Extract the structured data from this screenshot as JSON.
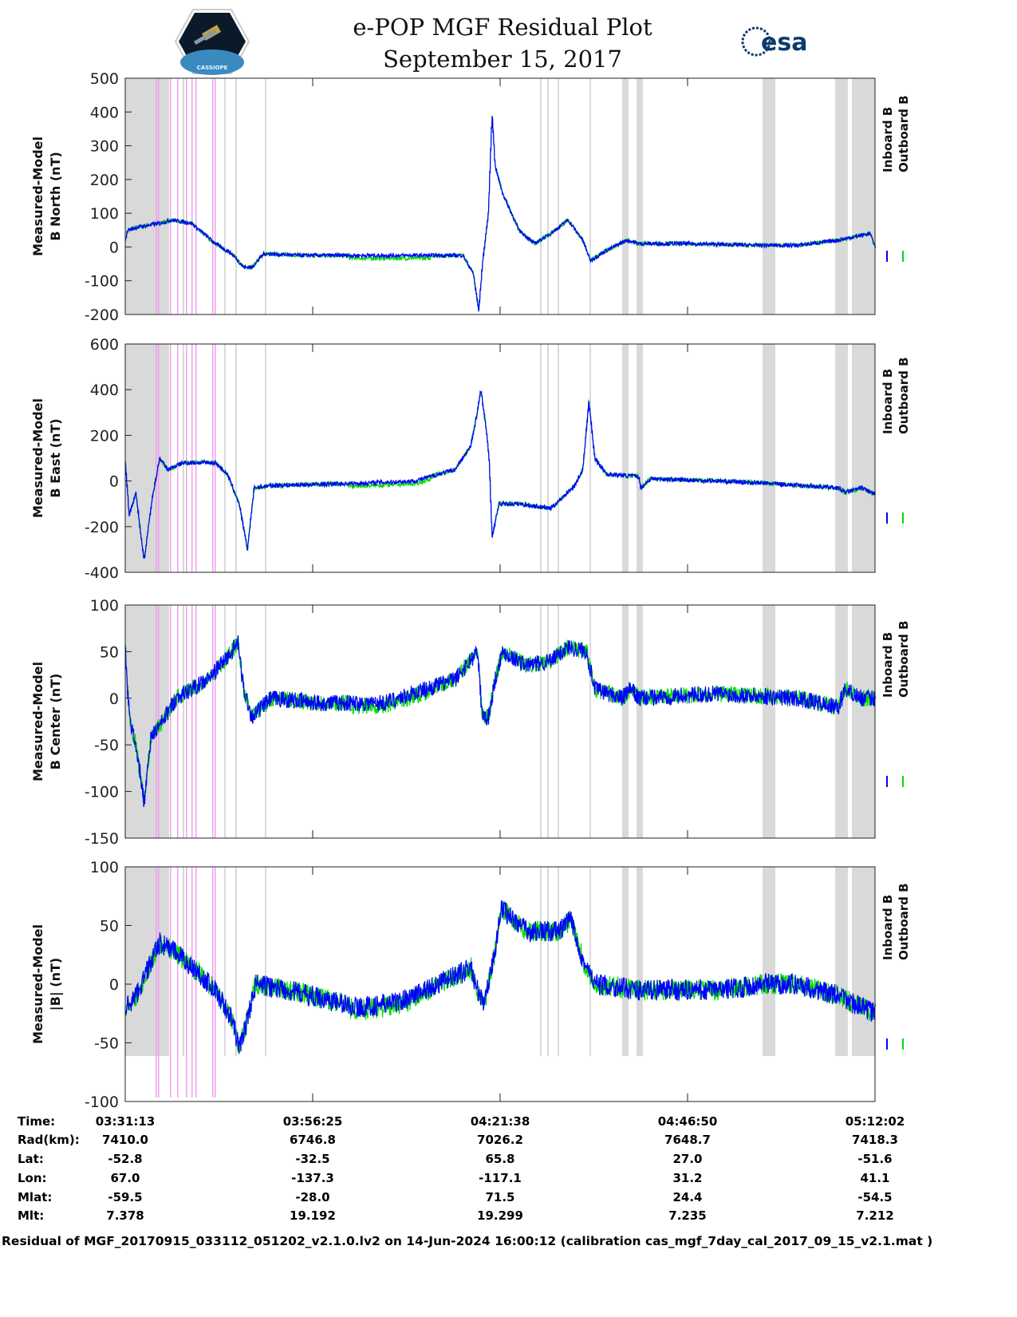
{
  "header": {
    "title_line1": "e-POP MGF Residual Plot",
    "title_line2": "September 15, 2017",
    "left_logo_text": "CASSIOPE",
    "right_logo_text": "esa"
  },
  "colors": {
    "inboard": "#0000ff",
    "outboard": "#00dd00",
    "band": "#d9d9d9",
    "pink": "#f0a0f0"
  },
  "chart_data": [
    {
      "type": "line",
      "ylabel": [
        "Measured-Model",
        "B North (nT)"
      ],
      "ylim": [
        -200,
        500
      ],
      "yticks": [
        500,
        400,
        300,
        200,
        100,
        0,
        -100,
        -200
      ],
      "noise": 6,
      "x": [
        0,
        0.3,
        1.9,
        4.6,
        6.2,
        8.9,
        10.5,
        12.1,
        14.3,
        15.9,
        17.0,
        18.6,
        23.9,
        31.4,
        38.9,
        45.4,
        46.8,
        47.5,
        48.0,
        48.8,
        49.3,
        49.7,
        50.7,
        52.9,
        55.0,
        57.2,
        59.5,
        61.5,
        62.5,
        64.7,
        67.4,
        69.0,
        75.4,
        85.0,
        90.4,
        95.8,
        100.1,
        100.8
      ],
      "y": [
        20,
        50,
        60,
        70,
        80,
        70,
        40,
        10,
        -20,
        -60,
        -60,
        -20,
        -25,
        -25,
        -25,
        -25,
        -80,
        -190,
        -50,
        100,
        400,
        240,
        160,
        50,
        10,
        40,
        80,
        20,
        -40,
        -10,
        20,
        10,
        10,
        5,
        5,
        20,
        40,
        0
      ],
      "legend": [
        "Inboard B",
        "Outboard B"
      ]
    },
    {
      "type": "line",
      "ylabel": [
        "Measured-Model",
        "B East (nT)"
      ],
      "ylim": [
        -400,
        600
      ],
      "yticks": [
        600,
        400,
        200,
        0,
        -200,
        -400
      ],
      "noise": 10,
      "x": [
        0,
        0.5,
        1.4,
        2.5,
        3.5,
        4.6,
        5.7,
        7.8,
        12.1,
        13.7,
        15.3,
        16.4,
        17.3,
        19.6,
        31.4,
        38.9,
        44.3,
        46.4,
        47.3,
        47.8,
        48.6,
        48.9,
        49.3,
        50.2,
        52.9,
        57.2,
        60.4,
        61.5,
        62.3,
        63.1,
        64.7,
        69.0,
        69.3,
        70.6,
        79.7,
        86.1,
        95.8,
        96.8,
        99.0,
        100.8
      ],
      "y": [
        80,
        -150,
        -50,
        -350,
        -100,
        100,
        50,
        80,
        80,
        30,
        -100,
        -300,
        -30,
        -20,
        -10,
        0,
        50,
        150,
        300,
        400,
        200,
        100,
        -250,
        -100,
        -100,
        -120,
        -20,
        50,
        350,
        100,
        30,
        20,
        -30,
        10,
        0,
        -10,
        -30,
        -50,
        -30,
        -60
      ],
      "legend": [
        "Inboard B",
        "Outboard B"
      ]
    },
    {
      "type": "line",
      "ylabel": [
        "Measured-Model",
        "B Center (nT)"
      ],
      "ylim": [
        -150,
        100
      ],
      "yticks": [
        100,
        50,
        0,
        -50,
        -100,
        -150
      ],
      "noise": 9,
      "x": [
        0,
        0.5,
        1.4,
        2.5,
        3.5,
        4.6,
        6.8,
        11.1,
        14.3,
        15.1,
        15.9,
        17.0,
        19.6,
        26.1,
        34.7,
        44.3,
        47.3,
        48.0,
        48.8,
        49.7,
        50.7,
        53.9,
        57.2,
        59.5,
        62.0,
        63.1,
        66.8,
        67.9,
        69.0,
        79.7,
        90.4,
        95.8,
        96.8,
        99.0,
        100.8
      ],
      "y": [
        50,
        -20,
        -50,
        -110,
        -40,
        -30,
        0,
        20,
        50,
        60,
        10,
        -20,
        0,
        -5,
        -5,
        20,
        50,
        -20,
        -20,
        20,
        50,
        35,
        40,
        55,
        50,
        10,
        0,
        10,
        0,
        5,
        0,
        -10,
        10,
        0,
        0
      ],
      "legend": [
        "Inboard B",
        "Outboard B"
      ]
    },
    {
      "type": "line",
      "ylabel": [
        "Measured-Model",
        "|B| (nT)"
      ],
      "ylim": [
        -100,
        100
      ],
      "yticks": [
        100,
        50,
        0,
        -50,
        -100
      ],
      "noise": 9,
      "x": [
        0,
        1.4,
        4.6,
        6.2,
        8.9,
        12.1,
        14.3,
        15.3,
        16.4,
        17.5,
        21.8,
        31.4,
        36.8,
        45.4,
        46.4,
        47.5,
        48.4,
        49.7,
        50.5,
        54.0,
        58.3,
        59.9,
        61.5,
        63.1,
        69.0,
        79.7,
        86.1,
        90.4,
        95.8,
        100.8
      ],
      "y": [
        -20,
        -10,
        35,
        30,
        15,
        -5,
        -30,
        -55,
        -30,
        0,
        -5,
        -20,
        -15,
        10,
        15,
        -10,
        -15,
        30,
        65,
        45,
        45,
        55,
        20,
        0,
        -5,
        -5,
        0,
        0,
        -10,
        -25
      ],
      "legend": [
        "Inboard B",
        "Outboard B"
      ]
    }
  ],
  "x_axis": {
    "range_minutes": [
      0,
      100.8
    ],
    "tick_minutes": [
      0,
      25.2,
      50.4,
      75.6,
      100.8
    ]
  },
  "info_table": {
    "labels": [
      "Time:",
      "Rad(km):",
      "Lat:",
      "Lon:",
      "Mlat:",
      "Mlt:"
    ],
    "columns": [
      [
        "03:31:13",
        "7410.0",
        "-52.8",
        "67.0",
        "-59.5",
        "7.378"
      ],
      [
        "03:56:25",
        "6746.8",
        "-32.5",
        "-137.3",
        "-28.0",
        "19.192"
      ],
      [
        "04:21:38",
        "7026.2",
        "65.8",
        "-117.1",
        "71.5",
        "19.299"
      ],
      [
        "04:46:50",
        "7648.7",
        "27.0",
        "31.2",
        "24.4",
        "7.235"
      ],
      [
        "05:12:02",
        "7418.3",
        "-51.6",
        "41.1",
        "-54.5",
        "7.212"
      ]
    ]
  },
  "footer": "Residual of MGF_20170915_033112_051202_v2.1.0.lv2 on 14-Jun-2024 16:00:12 (calibration cas_mgf_7day_cal_2017_09_15_v2.1.mat )"
}
